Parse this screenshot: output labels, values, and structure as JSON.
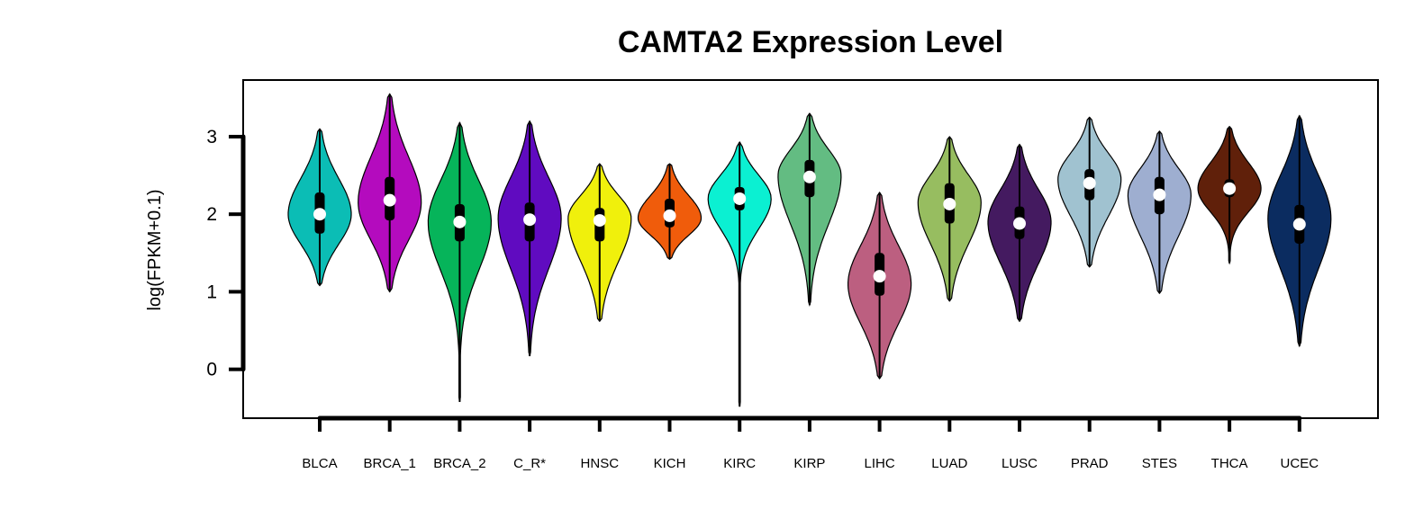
{
  "chart_data": {
    "type": "violin",
    "title": "CAMTA2 Expression Level",
    "xlabel": "",
    "ylabel": "log(FPKM+0.1)",
    "ylim": [
      -0.63,
      3.73
    ],
    "yticks": [
      0,
      1,
      2,
      3
    ],
    "grid": false,
    "legend": "none",
    "categories": [
      "BLCA",
      "BRCA_1",
      "BRCA_2",
      "C_R*",
      "HNSC",
      "KICH",
      "KIRC",
      "KIRP",
      "LIHC",
      "LUAD",
      "LUSC",
      "PRAD",
      "STES",
      "THCA",
      "UCEC"
    ],
    "series": [
      {
        "category": "BLCA",
        "color": "#0BBDB5",
        "min": 1.08,
        "q1": 1.75,
        "median": 2.0,
        "q3": 2.28,
        "max": 3.1,
        "peak": 2.0
      },
      {
        "category": "BRCA_1",
        "color": "#B40BBE",
        "min": 1.0,
        "q1": 1.92,
        "median": 2.18,
        "q3": 2.48,
        "max": 3.55,
        "peak": 2.15
      },
      {
        "category": "BRCA_2",
        "color": "#06B45A",
        "min": -0.42,
        "q1": 1.65,
        "median": 1.9,
        "q3": 2.13,
        "max": 3.18,
        "peak": 1.9
      },
      {
        "category": "C_R*",
        "color": "#600BC0",
        "min": 0.17,
        "q1": 1.65,
        "median": 1.93,
        "q3": 2.15,
        "max": 3.2,
        "peak": 1.95
      },
      {
        "category": "HNSC",
        "color": "#F0F00C",
        "min": 0.62,
        "q1": 1.65,
        "median": 1.92,
        "q3": 2.08,
        "max": 2.65,
        "peak": 1.95
      },
      {
        "category": "KICH",
        "color": "#F05C0B",
        "min": 1.42,
        "q1": 1.83,
        "median": 1.98,
        "q3": 2.2,
        "max": 2.65,
        "peak": 1.95
      },
      {
        "category": "KIRC",
        "color": "#0BF0D2",
        "min": -0.48,
        "q1": 2.05,
        "median": 2.2,
        "q3": 2.35,
        "max": 2.93,
        "peak": 2.2
      },
      {
        "category": "KIRP",
        "color": "#63BC82",
        "min": 0.83,
        "q1": 2.22,
        "median": 2.48,
        "q3": 2.7,
        "max": 3.3,
        "peak": 2.5
      },
      {
        "category": "LIHC",
        "color": "#BC5F80",
        "min": -0.12,
        "q1": 0.95,
        "median": 1.2,
        "q3": 1.5,
        "max": 2.28,
        "peak": 1.1
      },
      {
        "category": "LUAD",
        "color": "#97BD60",
        "min": 0.88,
        "q1": 1.88,
        "median": 2.13,
        "q3": 2.4,
        "max": 3.0,
        "peak": 2.15
      },
      {
        "category": "LUSC",
        "color": "#441A60",
        "min": 0.62,
        "q1": 1.68,
        "median": 1.88,
        "q3": 2.1,
        "max": 2.9,
        "peak": 1.9
      },
      {
        "category": "PRAD",
        "color": "#A0C2D0",
        "min": 1.32,
        "q1": 2.18,
        "median": 2.4,
        "q3": 2.58,
        "max": 3.25,
        "peak": 2.45
      },
      {
        "category": "STES",
        "color": "#9EAED0",
        "min": 0.98,
        "q1": 2.0,
        "median": 2.25,
        "q3": 2.48,
        "max": 3.07,
        "peak": 2.25
      },
      {
        "category": "THCA",
        "color": "#60200A",
        "min": 1.37,
        "q1": 2.22,
        "median": 2.33,
        "q3": 2.45,
        "max": 3.13,
        "peak": 2.33
      },
      {
        "category": "UCEC",
        "color": "#0B2C60",
        "min": 0.3,
        "q1": 1.62,
        "median": 1.87,
        "q3": 2.12,
        "max": 3.27,
        "peak": 1.95
      }
    ]
  }
}
